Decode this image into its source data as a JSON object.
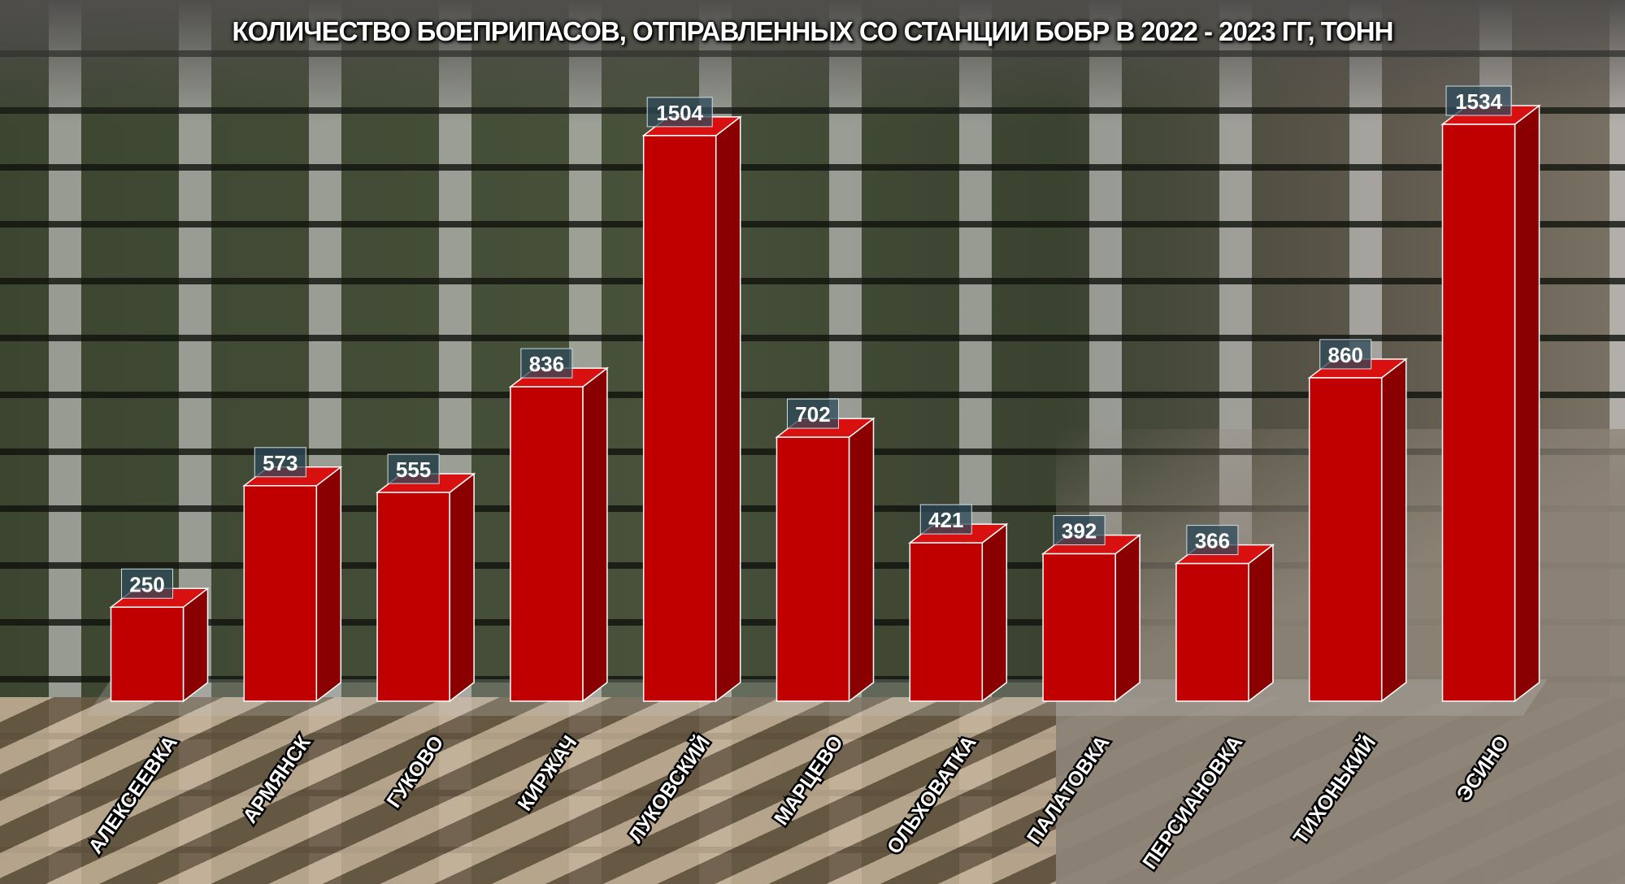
{
  "chart_data": {
    "type": "bar",
    "title": "КОЛИЧЕСТВО БОЕПРИПАСОВ, ОТПРАВЛЕННЫХ СО СТАНЦИИ БОБР В 2022 - 2023 ГГ, ТОНН",
    "categories": [
      "АЛЕКСЕЕВКА",
      "АРМЯНСК",
      "ГУКОВО",
      "КИРЖАЧ",
      "ЛУКОВСКИЙ",
      "МАРЦЕВО",
      "ОЛЬХОВАТКА",
      "ПАЛАТОВКА",
      "ПЕРСИАНОВКА",
      "ТИХОНЬКИЙ",
      "ЭСИНО"
    ],
    "values": [
      250,
      573,
      555,
      836,
      1504,
      702,
      421,
      392,
      366,
      860,
      1534
    ],
    "data_labels": true,
    "style": "3d-column",
    "bar_color": "#c00000",
    "label_box_color": "#2e4a5a",
    "grid": false,
    "ylim": [
      0,
      1534
    ],
    "xlabel": "",
    "ylabel": ""
  }
}
